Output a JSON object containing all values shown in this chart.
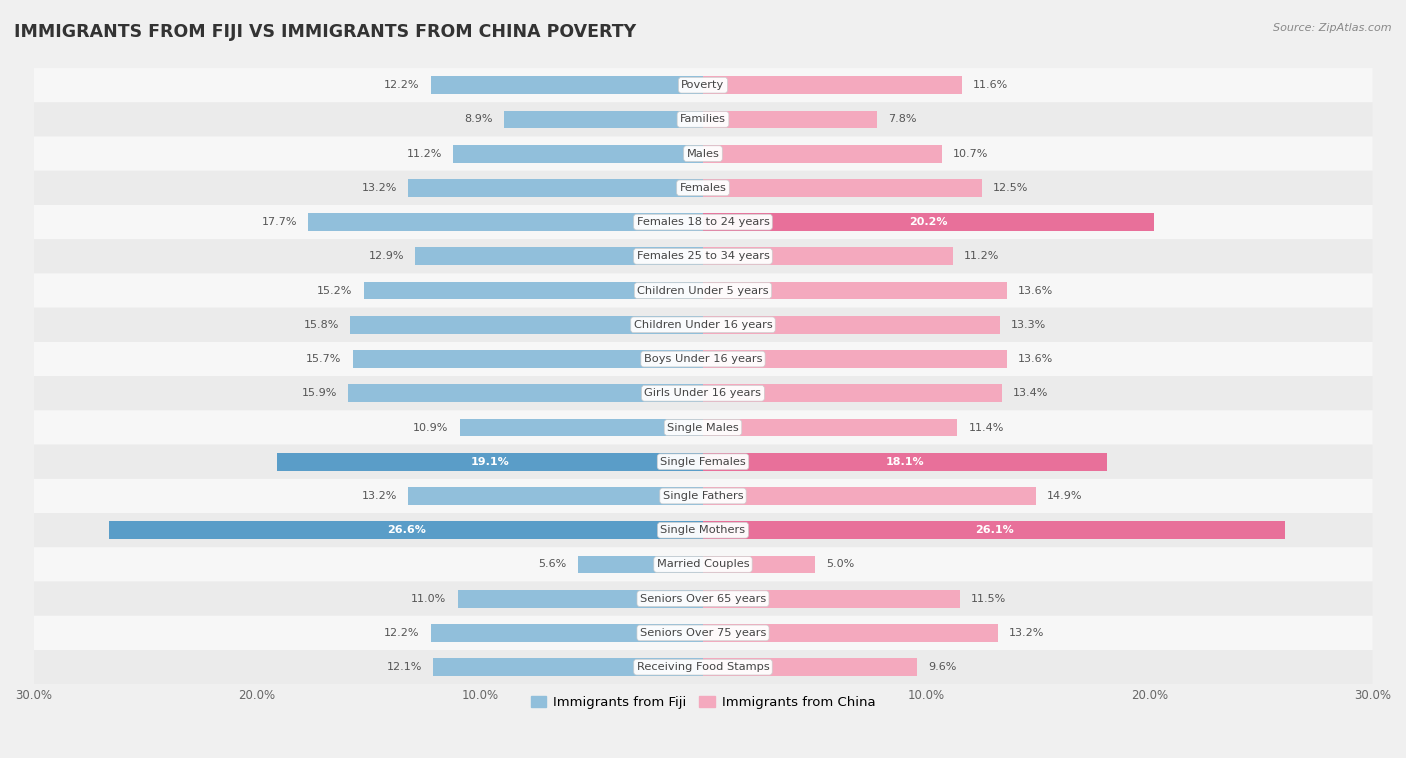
{
  "title": "IMMIGRANTS FROM FIJI VS IMMIGRANTS FROM CHINA POVERTY",
  "source": "Source: ZipAtlas.com",
  "categories": [
    "Poverty",
    "Families",
    "Males",
    "Females",
    "Females 18 to 24 years",
    "Females 25 to 34 years",
    "Children Under 5 years",
    "Children Under 16 years",
    "Boys Under 16 years",
    "Girls Under 16 years",
    "Single Males",
    "Single Females",
    "Single Fathers",
    "Single Mothers",
    "Married Couples",
    "Seniors Over 65 years",
    "Seniors Over 75 years",
    "Receiving Food Stamps"
  ],
  "fiji_values": [
    12.2,
    8.9,
    11.2,
    13.2,
    17.7,
    12.9,
    15.2,
    15.8,
    15.7,
    15.9,
    10.9,
    19.1,
    13.2,
    26.6,
    5.6,
    11.0,
    12.2,
    12.1
  ],
  "china_values": [
    11.6,
    7.8,
    10.7,
    12.5,
    20.2,
    11.2,
    13.6,
    13.3,
    13.6,
    13.4,
    11.4,
    18.1,
    14.9,
    26.1,
    5.0,
    11.5,
    13.2,
    9.6
  ],
  "fiji_color": "#91bfdb",
  "china_color": "#f4a9be",
  "fiji_highlight_indices": [
    11,
    13
  ],
  "china_highlight_indices": [
    4,
    11,
    13
  ],
  "fiji_highlight_color": "#5a9dc8",
  "china_highlight_color": "#e8709a",
  "row_colors": [
    "#f5f5f5",
    "#eaeaea"
  ],
  "background_color": "#f0f0f0",
  "axis_max": 30.0,
  "bar_height": 0.52,
  "label_fontsize": 8.2,
  "value_fontsize": 8.0,
  "title_fontsize": 12.5
}
